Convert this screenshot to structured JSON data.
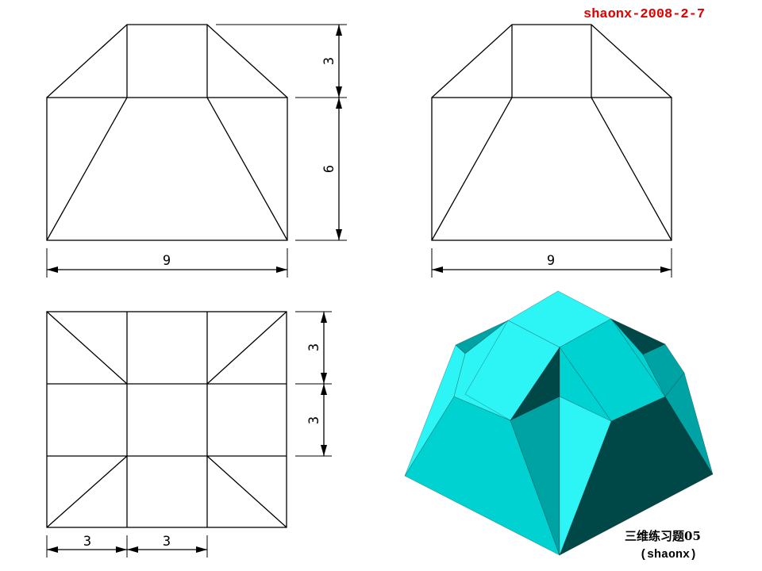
{
  "signature": "shaonx-2008-2-7",
  "caption": {
    "title": "三维练习题05",
    "author": "(shaonx)"
  },
  "front_view": {
    "dim_top_height": "3",
    "dim_bottom_height": "6",
    "dim_width": "9"
  },
  "side_view": {
    "dim_width": "9"
  },
  "top_view": {
    "dim_row1": "3",
    "dim_row2": "3",
    "dim_col1": "3",
    "dim_col2": "3"
  },
  "colors": {
    "cyan_bright": "#2ef5f5",
    "cyan_mid": "#00d2d2",
    "cyan_dark": "#00a3a3",
    "teal_shadow": "#004848",
    "signature": "#e00000"
  }
}
